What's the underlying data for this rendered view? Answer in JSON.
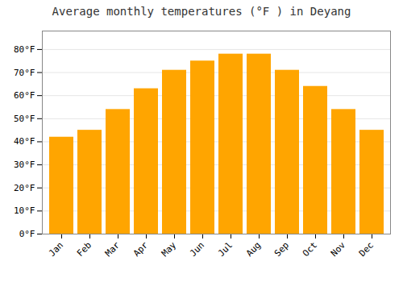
{
  "chart_data": {
    "type": "bar",
    "title": "Average monthly temperatures (°F ) in Deyang",
    "categories": [
      "Jan",
      "Feb",
      "Mar",
      "Apr",
      "May",
      "Jun",
      "Jul",
      "Aug",
      "Sep",
      "Oct",
      "Nov",
      "Dec"
    ],
    "values": [
      42,
      45,
      54,
      63,
      71,
      75,
      78,
      78,
      71,
      64,
      54,
      45
    ],
    "color": "#FFA500",
    "ylim": [
      0,
      88
    ],
    "yticks": [
      {
        "value": 0,
        "label": "0°F"
      },
      {
        "value": 10,
        "label": "10°F"
      },
      {
        "value": 20,
        "label": "20°F"
      },
      {
        "value": 30,
        "label": "30°F"
      },
      {
        "value": 40,
        "label": "40°F"
      },
      {
        "value": 50,
        "label": "50°F"
      },
      {
        "value": 60,
        "label": "60°F"
      },
      {
        "value": 70,
        "label": "70°F"
      },
      {
        "value": 80,
        "label": "80°F"
      }
    ],
    "grid": true
  }
}
